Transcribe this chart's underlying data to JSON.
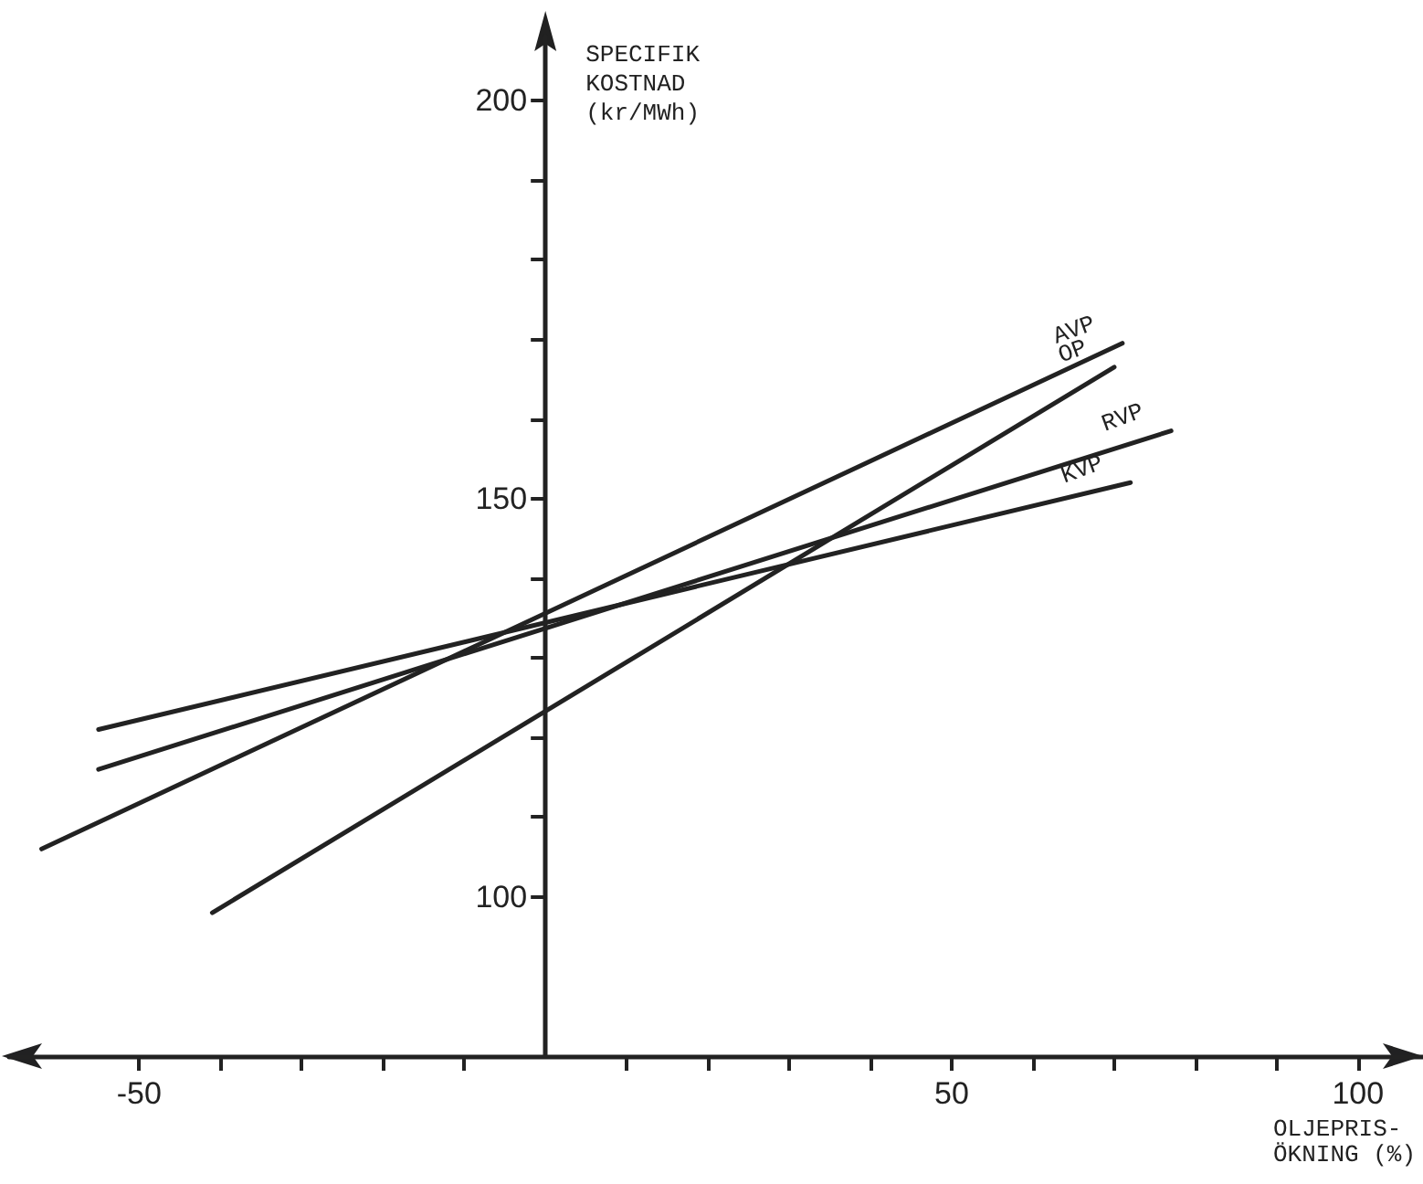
{
  "chart_data": {
    "type": "line",
    "xlabel": "OLJEPRIS-\nÖKNING (%)",
    "ylabel": "SPECIFIK\nKOSTNAD\n(kr/MWh)",
    "xlim": [
      -66,
      108
    ],
    "ylim": [
      80,
      208
    ],
    "xticks": [
      -50,
      {
        "value": -40,
        "label": null
      },
      {
        "value": -30,
        "label": null
      },
      {
        "value": -20,
        "label": null
      },
      {
        "value": -10,
        "label": null
      },
      {
        "value": 10,
        "label": null
      },
      {
        "value": 20,
        "label": null
      },
      {
        "value": 30,
        "label": null
      },
      {
        "value": 40,
        "label": null
      },
      50,
      {
        "value": 60,
        "label": null
      },
      {
        "value": 70,
        "label": null
      },
      {
        "value": 80,
        "label": null
      },
      {
        "value": 90,
        "label": null
      },
      100
    ],
    "yticks": [
      100,
      {
        "value": 110,
        "label": null
      },
      {
        "value": 120,
        "label": null
      },
      {
        "value": 130,
        "label": null
      },
      {
        "value": 140,
        "label": null
      },
      150,
      {
        "value": 160,
        "label": null
      },
      {
        "value": 170,
        "label": null
      },
      {
        "value": 180,
        "label": null
      },
      {
        "value": 190,
        "label": null
      },
      200
    ],
    "grid": false,
    "legend": false,
    "marker": "none",
    "line_style": "solid",
    "series": [
      {
        "name": "AVP",
        "color": "#222222",
        "x": [
          -62,
          71
        ],
        "values": [
          106,
          169.5
        ]
      },
      {
        "name": "OP",
        "color": "#222222",
        "x": [
          -41,
          70
        ],
        "values": [
          98,
          166.5
        ]
      },
      {
        "name": "RVP",
        "color": "#222222",
        "x": [
          -55,
          77
        ],
        "values": [
          116,
          158.5
        ]
      },
      {
        "name": "KVP",
        "color": "#222222",
        "x": [
          -55,
          72
        ],
        "values": [
          121,
          152
        ]
      }
    ]
  }
}
